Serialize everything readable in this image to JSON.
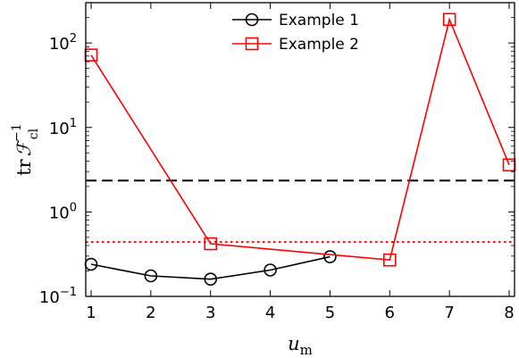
{
  "chart_data": {
    "type": "line",
    "yscale": "log",
    "x": [
      1,
      2,
      3,
      4,
      5,
      6,
      7,
      8
    ],
    "xlim": [
      1,
      8
    ],
    "ylim": [
      0.1,
      300
    ],
    "x_ticks": [
      "1",
      "2",
      "3",
      "4",
      "5",
      "6",
      "7",
      "8"
    ],
    "y_ticks": [
      {
        "value": 0.1,
        "base": "10",
        "exp": "−1"
      },
      {
        "value": 1,
        "base": "10",
        "exp": "0"
      },
      {
        "value": 10,
        "base": "10",
        "exp": "1"
      },
      {
        "value": 100,
        "base": "10",
        "exp": "2"
      }
    ],
    "xlabel": {
      "var": "u",
      "sub": "m"
    },
    "ylabel": {
      "prefix": "tr",
      "var": "ℱ",
      "sub": "cl",
      "sup": "−1"
    },
    "grid": false,
    "legend_position": "top-center",
    "series": [
      {
        "name": "Example 1",
        "color": "#000000",
        "marker": "circle",
        "x": [
          1,
          2,
          3,
          4,
          5
        ],
        "values": [
          0.24,
          0.175,
          0.16,
          0.205,
          0.295
        ]
      },
      {
        "name": "Example 2",
        "color": "#ff0000",
        "marker": "square",
        "x": [
          1,
          3,
          6,
          7,
          8
        ],
        "values": [
          72,
          0.42,
          0.27,
          190,
          3.6
        ]
      }
    ],
    "reference_lines": [
      {
        "y": 2.35,
        "color": "#000000",
        "style": "dashed"
      },
      {
        "y": 0.44,
        "color": "#ff0000",
        "style": "dotted"
      }
    ]
  }
}
